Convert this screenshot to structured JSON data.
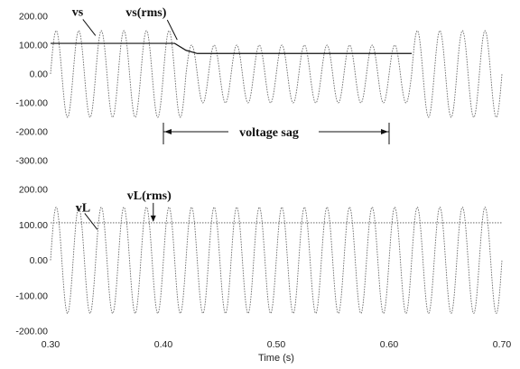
{
  "chart_data": [
    {
      "type": "line",
      "ylim": [
        -300,
        200
      ],
      "xlim": [
        0.3,
        0.7
      ],
      "yticks": [
        "200.00",
        "100.00",
        "0.00",
        "-100.00",
        "-200.00",
        "-300.00"
      ],
      "series": [
        {
          "name": "vs",
          "frequency_hz": 50,
          "segments": [
            {
              "x_start": 0.3,
              "x_end": 0.42,
              "amplitude": 150
            },
            {
              "x_start": 0.42,
              "x_end": 0.62,
              "amplitude": 100
            },
            {
              "x_start": 0.62,
              "x_end": 0.7,
              "amplitude": 150
            }
          ]
        },
        {
          "name": "vs(rms)",
          "points": [
            [
              0.3,
              106
            ],
            [
              0.41,
              106
            ],
            [
              0.42,
              82
            ],
            [
              0.43,
              71
            ],
            [
              0.62,
              71
            ]
          ]
        }
      ],
      "annotations": [
        {
          "text": "vs",
          "x": 0.343,
          "y": 108
        },
        {
          "text": "vs(rms)",
          "x": 0.413,
          "y": 106
        },
        {
          "text": "voltage sag",
          "x_start": 0.4,
          "x_end": 0.6,
          "y": -200
        }
      ]
    },
    {
      "type": "line",
      "ylim": [
        -200,
        200
      ],
      "xlim": [
        0.3,
        0.7
      ],
      "yticks": [
        "200.00",
        "100.00",
        "0.00",
        "-100.00",
        "-200.00"
      ],
      "xticks": [
        "0.30",
        "0.40",
        "0.50",
        "0.60",
        "0.70"
      ],
      "xlabel": "Time (s)",
      "series": [
        {
          "name": "vL",
          "frequency_hz": 50,
          "segments": [
            {
              "x_start": 0.3,
              "x_end": 0.7,
              "amplitude": 150
            }
          ]
        },
        {
          "name": "vL(rms)",
          "points": [
            [
              0.3,
              106
            ],
            [
              0.7,
              106
            ]
          ]
        }
      ],
      "annotations": [
        {
          "text": "vL",
          "x": 0.343,
          "y": 148
        },
        {
          "text": "vL(rms)",
          "x": 0.395,
          "y": 106
        }
      ]
    }
  ]
}
